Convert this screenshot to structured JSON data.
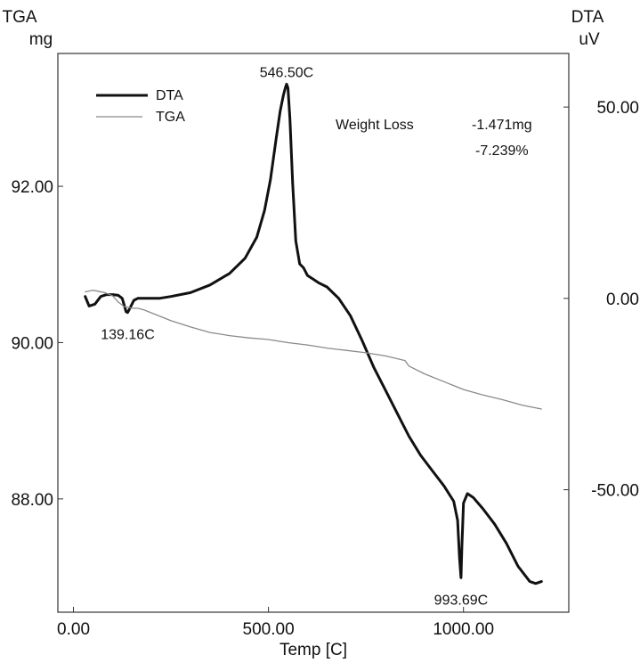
{
  "chart_data": {
    "type": "line",
    "x_axis": {
      "label": "Temp  [C]",
      "range": [
        -40,
        1270
      ],
      "ticks": [
        0,
        500,
        1000
      ],
      "tick_labels": [
        "0.00",
        "500.00",
        "1000.00"
      ]
    },
    "left_axis": {
      "label_line1": "TGA",
      "label_line2": "mg",
      "range": [
        86.55,
        93.7
      ],
      "ticks": [
        88,
        90,
        92
      ],
      "tick_labels": [
        "88.00",
        "90.00",
        "92.00"
      ]
    },
    "right_axis": {
      "label_line1": "DTA",
      "label_line2": "uV",
      "range": [
        -82,
        64
      ],
      "ticks": [
        -50,
        0,
        50
      ],
      "tick_labels": [
        "-50.00",
        "0.00",
        "50.00"
      ]
    },
    "grid": false,
    "legend_position": "top-left",
    "series": [
      {
        "name": "DTA",
        "axis": "right",
        "color": "#111111",
        "x": [
          30,
          40,
          55,
          70,
          85,
          100,
          115,
          125,
          135,
          139,
          145,
          155,
          165,
          180,
          200,
          220,
          250,
          300,
          350,
          400,
          440,
          470,
          490,
          505,
          520,
          530,
          538,
          543,
          546.5,
          550,
          555,
          562,
          570,
          580,
          590,
          600,
          615,
          630,
          650,
          680,
          710,
          740,
          770,
          800,
          830,
          860,
          890,
          920,
          950,
          975,
          985,
          990,
          993.69,
          996,
          1000,
          1010,
          1025,
          1050,
          1080,
          1110,
          1140,
          1170,
          1185,
          1200
        ],
        "y": [
          0.5,
          -2.0,
          -1.5,
          0.5,
          1.0,
          1.0,
          0.8,
          0.0,
          -3.5,
          -3.7,
          -2.5,
          -0.5,
          0.0,
          0.0,
          0.0,
          0.0,
          0.5,
          1.5,
          3.5,
          6.5,
          10.5,
          16.0,
          23.0,
          31.0,
          42.0,
          49.0,
          53.0,
          55.0,
          56.0,
          55.0,
          47.0,
          30.0,
          15.0,
          9.0,
          8.0,
          6.0,
          5.0,
          4.0,
          3.0,
          0.0,
          -4.5,
          -11.0,
          -18.0,
          -24.0,
          -30.0,
          -36.0,
          -41.0,
          -45.0,
          -49.0,
          -53.0,
          -58.0,
          -68.0,
          -73.0,
          -65.0,
          -53.5,
          -51.0,
          -52.0,
          -55.0,
          -59.0,
          -64.0,
          -70.0,
          -74.0,
          -74.5,
          -74.0
        ]
      },
      {
        "name": "TGA",
        "axis": "left",
        "color": "#8a8a8a",
        "x": [
          30,
          50,
          80,
          100,
          115,
          130,
          150,
          165,
          180,
          200,
          250,
          300,
          350,
          400,
          450,
          500,
          550,
          600,
          650,
          700,
          750,
          800,
          850,
          860,
          900,
          950,
          1000,
          1050,
          1100,
          1150,
          1200
        ],
        "y": [
          90.65,
          90.67,
          90.64,
          90.6,
          90.52,
          90.46,
          90.44,
          90.44,
          90.42,
          90.38,
          90.28,
          90.2,
          90.13,
          90.09,
          90.06,
          90.04,
          90.0,
          89.97,
          89.93,
          89.9,
          89.87,
          89.83,
          89.77,
          89.7,
          89.6,
          89.5,
          89.4,
          89.33,
          89.27,
          89.2,
          89.15
        ]
      }
    ],
    "annotations": [
      {
        "text": "546.50C",
        "x": 546.5,
        "y": 56.0,
        "axis": "right",
        "placement": "above"
      },
      {
        "text": "139.16C",
        "x": 139.16,
        "y": -3.7,
        "axis": "right",
        "placement": "below"
      },
      {
        "text": "993.69C",
        "x": 993.69,
        "y": -73.0,
        "axis": "right",
        "placement": "below"
      }
    ],
    "weight_loss": {
      "label": "Weight Loss",
      "value_mg": "-1.471mg",
      "value_pct": "-7.239%"
    }
  }
}
